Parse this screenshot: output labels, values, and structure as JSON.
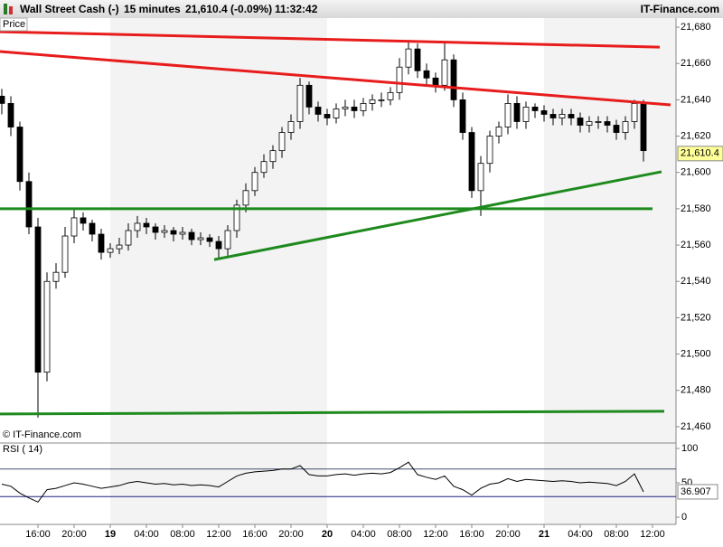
{
  "header": {
    "instrument": "Wall Street Cash (-)",
    "interval": "15 minutes",
    "quote": "21,610.4 (-0.09%)",
    "time": "11:32:42",
    "brand": "IT-Finance.com"
  },
  "chart_data": [
    {
      "type": "candlestick",
      "title": "Price",
      "credit": "© IT-Finance.com",
      "up_color": "#ffffff",
      "down_color": "#000000",
      "x": [
        12,
        13,
        14,
        15,
        16,
        17,
        18,
        19,
        20,
        21,
        22,
        23,
        24,
        25,
        26,
        27,
        28,
        29,
        30,
        31,
        32,
        33,
        34,
        35,
        36,
        37,
        38,
        39,
        40,
        41,
        42,
        43,
        44,
        45,
        46,
        47,
        48,
        49,
        50,
        51,
        52,
        53,
        54,
        55,
        56,
        57,
        58,
        59,
        60,
        61,
        62,
        63,
        64,
        65,
        66,
        67,
        68,
        69,
        70,
        71,
        72,
        73,
        74,
        75,
        76,
        77,
        78,
        79,
        80,
        81,
        82,
        83
      ],
      "open": [
        21642,
        21638,
        21625,
        21595,
        21570,
        21490,
        21540,
        21545,
        21565,
        21575,
        21572,
        21566,
        21556,
        21558,
        21560,
        21568,
        21572,
        21570,
        21567,
        21568,
        21566,
        21567,
        21563,
        21564,
        21562,
        21558,
        21568,
        21582,
        21590,
        21600,
        21606,
        21612,
        21622,
        21628,
        21648,
        21636,
        21632,
        21630,
        21635,
        21636,
        21634,
        21638,
        21640,
        21640,
        21644,
        21658,
        21668,
        21656,
        21652,
        21648,
        21662,
        21640,
        21622,
        21590,
        21605,
        21620,
        21625,
        21638,
        21628,
        21636,
        21634,
        21632,
        21630,
        21632,
        21630,
        21626,
        21628,
        21628,
        21626,
        21622,
        21628,
        21638
      ],
      "high": [
        21646,
        21642,
        21628,
        21600,
        21575,
        21545,
        21550,
        21570,
        21580,
        21578,
        21574,
        21569,
        21561,
        21564,
        21572,
        21576,
        21575,
        21572,
        21571,
        21570,
        21570,
        21569,
        21567,
        21566,
        21565,
        21571,
        21585,
        21594,
        21603,
        21610,
        21615,
        21625,
        21632,
        21652,
        21650,
        21639,
        21635,
        21638,
        21640,
        21640,
        21641,
        21643,
        21644,
        21647,
        21663,
        21673,
        21671,
        21660,
        21655,
        21672,
        21665,
        21644,
        21625,
        21609,
        21623,
        21628,
        21643,
        21642,
        21639,
        21638,
        21637,
        21635,
        21635,
        21635,
        21633,
        21631,
        21631,
        21631,
        21629,
        21631,
        21640,
        21640
      ],
      "low": [
        21632,
        21620,
        21590,
        21566,
        21465,
        21485,
        21536,
        21542,
        21561,
        21568,
        21562,
        21552,
        21553,
        21555,
        21557,
        21564,
        21566,
        21563,
        21564,
        21562,
        21563,
        21560,
        21560,
        21559,
        21553,
        21554,
        21564,
        21578,
        21587,
        21597,
        21602,
        21608,
        21618,
        21624,
        21632,
        21628,
        21626,
        21627,
        21631,
        21630,
        21631,
        21634,
        21636,
        21637,
        21640,
        21654,
        21652,
        21648,
        21644,
        21645,
        21636,
        21618,
        21586,
        21576,
        21600,
        21616,
        21621,
        21624,
        21624,
        21630,
        21628,
        21626,
        21626,
        21626,
        21622,
        21622,
        21624,
        21622,
        21618,
        21618,
        21624,
        21606
      ],
      "close": [
        21638,
        21625,
        21595,
        21570,
        21490,
        21540,
        21545,
        21565,
        21575,
        21572,
        21566,
        21556,
        21558,
        21560,
        21568,
        21572,
        21570,
        21567,
        21568,
        21566,
        21567,
        21563,
        21564,
        21562,
        21558,
        21568,
        21582,
        21590,
        21600,
        21606,
        21612,
        21622,
        21628,
        21648,
        21636,
        21632,
        21630,
        21635,
        21636,
        21634,
        21638,
        21640,
        21640,
        21644,
        21658,
        21668,
        21656,
        21652,
        21648,
        21662,
        21640,
        21622,
        21590,
        21605,
        21620,
        21625,
        21638,
        21628,
        21636,
        21634,
        21632,
        21630,
        21632,
        21630,
        21626,
        21628,
        21628,
        21626,
        21622,
        21628,
        21638,
        21612
      ],
      "last_price": {
        "value": 21610.4,
        "label": "21,610.4"
      },
      "trend_lines": [
        {
          "color": "#e81c1c",
          "x": [
            11.8,
            84.8
          ],
          "y": [
            21677.5,
            21669
          ]
        },
        {
          "color": "#e81c1c",
          "x": [
            11.8,
            86
          ],
          "y": [
            21666.6,
            21637.2
          ]
        },
        {
          "color": "#1e8a1e",
          "x": [
            11.8,
            84
          ],
          "y": [
            21580,
            21580
          ]
        },
        {
          "color": "#1e8a1e",
          "x": [
            11.8,
            85.3
          ],
          "y": [
            21467,
            21468.5
          ]
        },
        {
          "color": "#1e8a1e",
          "x": [
            35.5,
            85
          ],
          "y": [
            21552,
            21600.4
          ]
        }
      ],
      "xlim": [
        11.8,
        86.6
      ],
      "ylim": [
        21451,
        21685
      ],
      "yticks": [
        {
          "value": 21460,
          "label": "21,460"
        },
        {
          "value": 21480,
          "label": "21,480"
        },
        {
          "value": 21500,
          "label": "21,500"
        },
        {
          "value": 21520,
          "label": "21,520"
        },
        {
          "value": 21540,
          "label": "21,540"
        },
        {
          "value": 21560,
          "label": "21,560"
        },
        {
          "value": 21580,
          "label": "21,580"
        },
        {
          "value": 21600,
          "label": "21,600"
        },
        {
          "value": 21620,
          "label": "21,620"
        },
        {
          "value": 21640,
          "label": "21,640"
        },
        {
          "value": 21660,
          "label": "21,660"
        },
        {
          "value": 21680,
          "label": "21,680"
        }
      ]
    },
    {
      "type": "line",
      "title": "RSI ( 14)",
      "color": "#000000",
      "x": [
        12,
        13,
        14,
        15,
        16,
        17,
        18,
        19,
        20,
        21,
        22,
        23,
        24,
        25,
        26,
        27,
        28,
        29,
        30,
        31,
        32,
        33,
        34,
        35,
        36,
        37,
        38,
        39,
        40,
        41,
        42,
        43,
        44,
        45,
        46,
        47,
        48,
        49,
        50,
        51,
        52,
        53,
        54,
        55,
        56,
        57,
        58,
        59,
        60,
        61,
        62,
        63,
        64,
        65,
        66,
        67,
        68,
        69,
        70,
        71,
        72,
        73,
        74,
        75,
        76,
        77,
        78,
        79,
        80,
        81,
        82,
        83
      ],
      "values": [
        48,
        45,
        35,
        28,
        22,
        40,
        42,
        46,
        50,
        48,
        45,
        42,
        44,
        46,
        50,
        52,
        50,
        48,
        49,
        47,
        48,
        46,
        47,
        46,
        44,
        52,
        60,
        64,
        66,
        67,
        68,
        70,
        70,
        75,
        62,
        60,
        60,
        62,
        63,
        61,
        63,
        64,
        63,
        65,
        72,
        80,
        62,
        58,
        55,
        60,
        45,
        40,
        32,
        42,
        48,
        50,
        56,
        52,
        55,
        54,
        53,
        52,
        53,
        52,
        50,
        51,
        50,
        49,
        46,
        52,
        63,
        36.907
      ],
      "levels": [
        30,
        70
      ],
      "xlim": [
        11.8,
        86.6
      ],
      "ylim": [
        -10.5,
        107.9
      ],
      "yticks": [
        0,
        50,
        100
      ],
      "xticks": [
        {
          "value": 16,
          "label": "16:00"
        },
        {
          "value": 20,
          "label": "20:00"
        },
        {
          "value": 24,
          "label": "19"
        },
        {
          "value": 28,
          "label": "04:00"
        },
        {
          "value": 32,
          "label": "08:00"
        },
        {
          "value": 36,
          "label": "12:00"
        },
        {
          "value": 40,
          "label": "16:00"
        },
        {
          "value": 44,
          "label": "20:00"
        },
        {
          "value": 48,
          "label": "20"
        },
        {
          "value": 52,
          "label": "04:00"
        },
        {
          "value": 56,
          "label": "08:00"
        },
        {
          "value": 60,
          "label": "12:00"
        },
        {
          "value": 64,
          "label": "16:00"
        },
        {
          "value": 68,
          "label": "20:00"
        },
        {
          "value": 72,
          "label": "21"
        },
        {
          "value": 76,
          "label": "04:00"
        },
        {
          "value": 80,
          "label": "08:00"
        },
        {
          "value": 84,
          "label": "12:00"
        }
      ]
    }
  ]
}
